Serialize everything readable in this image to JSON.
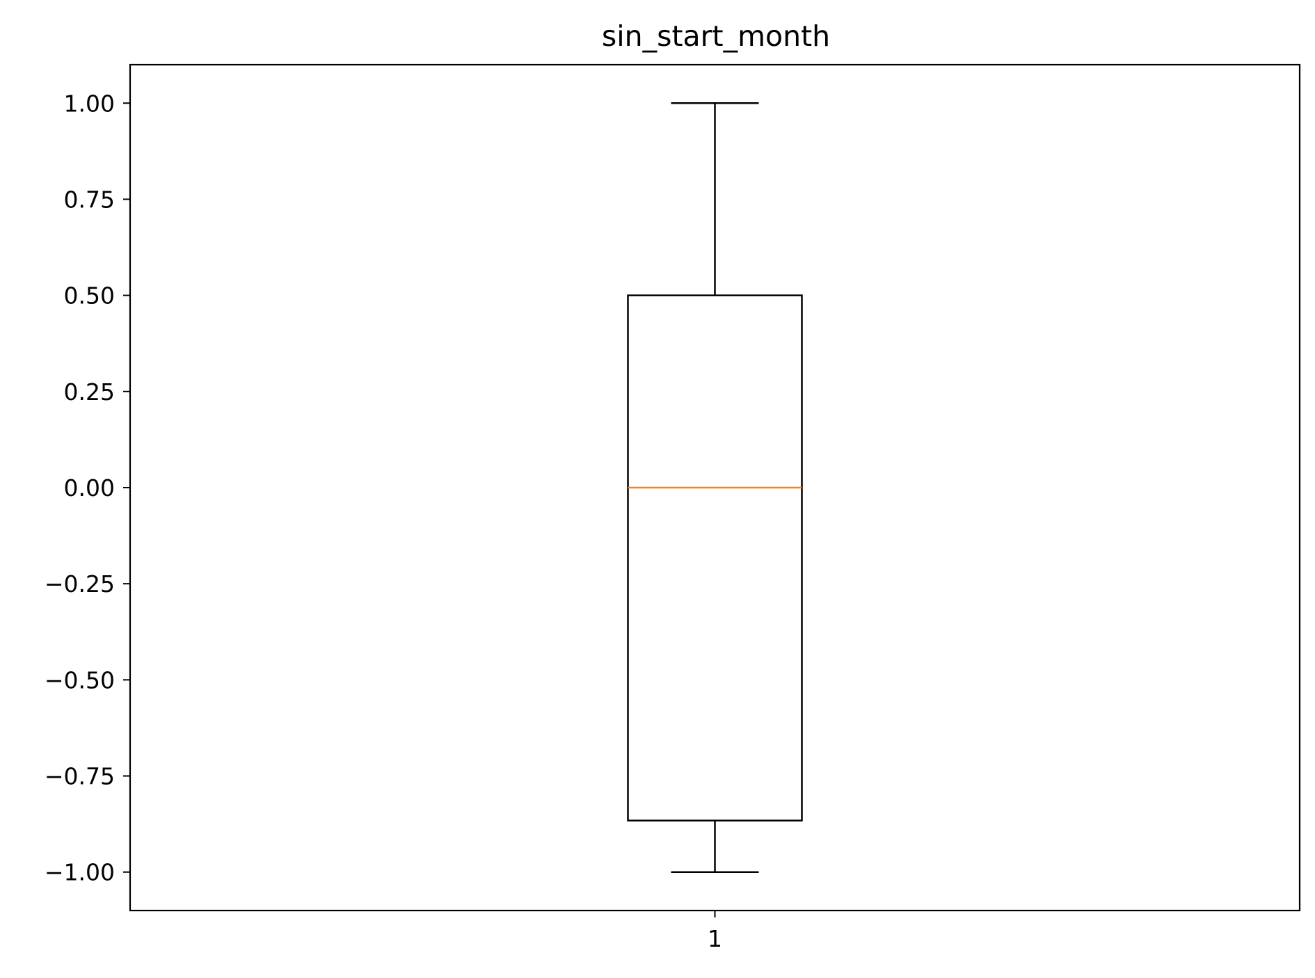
{
  "chart_data": {
    "type": "boxplot",
    "title": "sin_start_month",
    "xlabel": "",
    "ylabel": "",
    "categories": [
      "1"
    ],
    "ylim": [
      -1.1,
      1.1
    ],
    "yticks": [
      1.0,
      0.75,
      0.5,
      0.25,
      0.0,
      -0.25,
      -0.5,
      -0.75,
      -1.0
    ],
    "ytick_labels": [
      "1.00",
      "0.75",
      "0.50",
      "0.25",
      "0.00",
      "−0.25",
      "−0.50",
      "−0.75",
      "−1.00"
    ],
    "boxes": [
      {
        "category": "1",
        "whisker_low": -1.0,
        "q1": -0.866,
        "median": 0.0,
        "q3": 0.5,
        "whisker_high": 1.0
      }
    ],
    "grid": false,
    "colors": {
      "box": "#000000",
      "median": "#ff7f0e"
    }
  }
}
